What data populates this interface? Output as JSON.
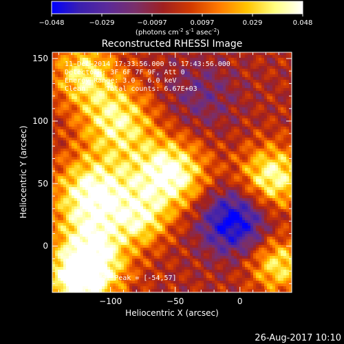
{
  "colors": {
    "background": "#000000",
    "text": "#ffffff"
  },
  "colorbar": {
    "ticks": [
      "-0.048",
      "-0.029",
      "-0.0097",
      "0.0097",
      "0.029",
      "0.048"
    ],
    "min": -0.048,
    "max": 0.048,
    "label_prefix": "(photons cm",
    "label_sup1": "-2",
    "label_mid1": " s",
    "label_sup2": "-1",
    "label_mid2": " asec",
    "label_sup3": "-2",
    "label_suffix": ")",
    "colormap": [
      "#0000ff",
      "#3a1fb0",
      "#5b2a9a",
      "#7a2f6a",
      "#a02020",
      "#d23a00",
      "#ff7a00",
      "#ffc400",
      "#ffff80",
      "#ffffff"
    ]
  },
  "chart_data": {
    "type": "heatmap",
    "title": "Reconstructed RHESSI Image",
    "xlabel": "Heliocentric X (arcsec)",
    "ylabel": "Heliocentric Y (arcsec)",
    "xlim": [
      -145,
      40
    ],
    "ylim": [
      -37,
      155
    ],
    "xticks": [
      {
        "value": -100,
        "label": "−100"
      },
      {
        "value": -50,
        "label": "−50"
      },
      {
        "value": 0,
        "label": "0"
      }
    ],
    "yticks": [
      {
        "value": 0,
        "label": "0"
      },
      {
        "value": 50,
        "label": "50"
      },
      {
        "value": 100,
        "label": "100"
      },
      {
        "value": 150,
        "label": "150"
      }
    ],
    "annotations": [
      "11-Dec-2014 17:33:56.000 to 17:43:56.000",
      "Detectors: 3F 6F 7F 9F, Att 0",
      "Energy Range: 3.0 - 6.0 keV",
      "Clean     Total counts: 6.67E+03"
    ],
    "position_note": "Position of Peak = [-54,57]",
    "peak": {
      "x": -54,
      "y": 57
    },
    "blobs": [
      {
        "x": -112,
        "y": 40,
        "amp": 1.0,
        "s": 22
      },
      {
        "x": -55,
        "y": 57,
        "amp": 1.0,
        "s": 20
      },
      {
        "x": -95,
        "y": 100,
        "amp": 0.75,
        "s": 20
      },
      {
        "x": -120,
        "y": 138,
        "amp": 0.7,
        "s": 18
      },
      {
        "x": -115,
        "y": -10,
        "amp": 0.95,
        "s": 20
      },
      {
        "x": -125,
        "y": -30,
        "amp": 0.75,
        "s": 16
      },
      {
        "x": 25,
        "y": 55,
        "amp": 0.85,
        "s": 18
      },
      {
        "x": 30,
        "y": -15,
        "amp": 0.7,
        "s": 16
      },
      {
        "x": -75,
        "y": 20,
        "amp": 0.55,
        "s": 14
      },
      {
        "x": -5,
        "y": 20,
        "amp": -0.9,
        "s": 18
      },
      {
        "x": -30,
        "y": 120,
        "amp": -0.3,
        "s": 20
      }
    ]
  },
  "footer": {
    "date_time": "26-Aug-2017 10:10"
  }
}
